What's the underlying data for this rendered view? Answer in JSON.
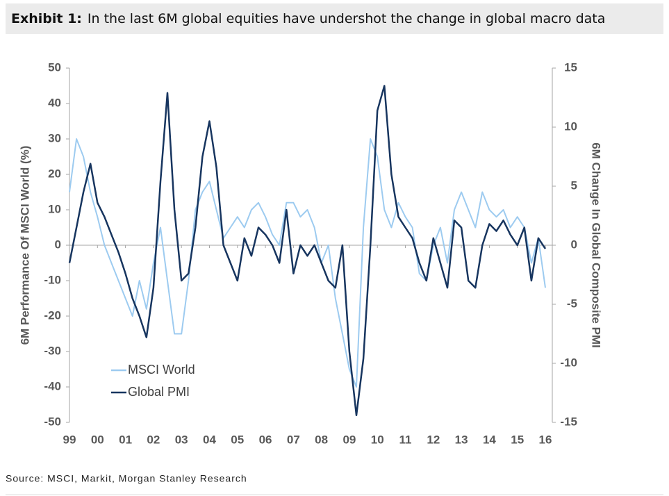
{
  "chart_data": {
    "type": "line",
    "exhibit_label": "Exhibit 1:",
    "title": "In the last 6M global equities have undershot the change in global macro data",
    "ylabel": "6M Performance Of MSCI World (%)",
    "y2label": "6M Change In Global Composite PMI",
    "source": "Source: MSCI, Markit, Morgan Stanley Research",
    "legend": "lower left",
    "x": [
      1999,
      1999.25,
      1999.5,
      1999.75,
      2000,
      2000.25,
      2000.5,
      2000.75,
      2001,
      2001.25,
      2001.5,
      2001.75,
      2002,
      2002.25,
      2002.5,
      2002.75,
      2003,
      2003.25,
      2003.5,
      2003.75,
      2004,
      2004.25,
      2004.5,
      2004.75,
      2005,
      2005.25,
      2005.5,
      2005.75,
      2006,
      2006.25,
      2006.5,
      2006.75,
      2007,
      2007.25,
      2007.5,
      2007.75,
      2008,
      2008.25,
      2008.5,
      2008.75,
      2009,
      2009.25,
      2009.5,
      2009.75,
      2010,
      2010.25,
      2010.5,
      2010.75,
      2011,
      2011.25,
      2011.5,
      2011.75,
      2012,
      2012.25,
      2012.5,
      2012.75,
      2013,
      2013.25,
      2013.5,
      2013.75,
      2014,
      2014.25,
      2014.5,
      2014.75,
      2015,
      2015.25,
      2015.5,
      2015.75,
      2016
    ],
    "series": [
      {
        "name": "MSCI World",
        "color": "#9dcbf0",
        "axis": "y",
        "values": [
          15,
          30,
          25,
          15,
          8,
          0,
          -5,
          -10,
          -15,
          -20,
          -10,
          -18,
          -5,
          5,
          -10,
          -25,
          -25,
          -10,
          10,
          15,
          18,
          10,
          2,
          5,
          8,
          5,
          10,
          12,
          8,
          3,
          0,
          12,
          12,
          8,
          10,
          5,
          -5,
          0,
          -15,
          -25,
          -35,
          -40,
          5,
          30,
          25,
          10,
          5,
          12,
          8,
          5,
          -8,
          -10,
          0,
          5,
          -5,
          10,
          15,
          10,
          5,
          15,
          10,
          8,
          10,
          5,
          8,
          5,
          -5,
          2,
          -12
        ]
      },
      {
        "name": "Global PMI",
        "color": "#17355f",
        "axis": "y2",
        "values": [
          -1.5,
          1.5,
          4.5,
          6.9,
          3.6,
          2.4,
          0.9,
          -0.6,
          -2.4,
          -4.5,
          -6,
          -7.8,
          -3.6,
          5.4,
          12.9,
          3,
          -3,
          -2.4,
          1.5,
          7.5,
          10.5,
          6.6,
          0,
          -1.5,
          -3,
          0.6,
          -0.9,
          1.5,
          0.9,
          0,
          -1.5,
          3,
          -2.4,
          0,
          -0.9,
          0,
          -1.5,
          -3,
          -3.6,
          0,
          -9,
          -14.4,
          -9.6,
          0,
          11.4,
          13.5,
          6,
          2.4,
          1.5,
          0.6,
          -1.5,
          -3,
          0.6,
          -1.5,
          -3.6,
          2.1,
          1.5,
          -3,
          -3.6,
          0,
          1.8,
          1.2,
          2.1,
          0.9,
          0,
          1.5,
          -3,
          0.6,
          -0.3
        ]
      }
    ],
    "xlim": [
      1999,
      2016
    ],
    "xticks": [
      {
        "value": 1999,
        "label": "99"
      },
      {
        "value": 2000,
        "label": "00"
      },
      {
        "value": 2001,
        "label": "01"
      },
      {
        "value": 2002,
        "label": "02"
      },
      {
        "value": 2003,
        "label": "03"
      },
      {
        "value": 2004,
        "label": "04"
      },
      {
        "value": 2005,
        "label": "05"
      },
      {
        "value": 2006,
        "label": "06"
      },
      {
        "value": 2007,
        "label": "07"
      },
      {
        "value": 2008,
        "label": "08"
      },
      {
        "value": 2009,
        "label": "09"
      },
      {
        "value": 2010,
        "label": "10"
      },
      {
        "value": 2011,
        "label": "11"
      },
      {
        "value": 2012,
        "label": "12"
      },
      {
        "value": 2013,
        "label": "13"
      },
      {
        "value": 2014,
        "label": "14"
      },
      {
        "value": 2015,
        "label": "15"
      },
      {
        "value": 2016,
        "label": "16"
      }
    ],
    "ylim": [
      -50,
      50
    ],
    "yticks": [
      -50,
      -40,
      -30,
      -20,
      -10,
      0,
      10,
      20,
      30,
      40,
      50
    ],
    "y2lim": [
      -15,
      15
    ],
    "y2ticks": [
      -15,
      -10,
      -5,
      0,
      5,
      10,
      15
    ]
  }
}
